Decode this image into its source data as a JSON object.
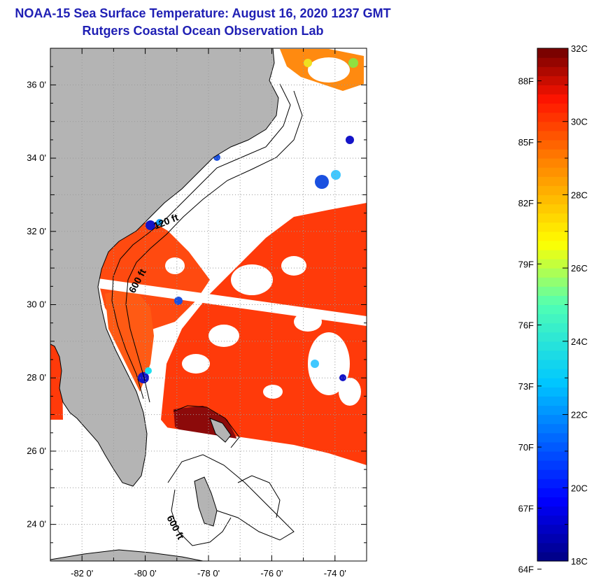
{
  "header": {
    "title": "NOAA-15 Sea Surface Temperature:  August 16, 2020 1237 GMT",
    "subtitle": "Rutgers Coastal Ocean Observation Lab"
  },
  "map": {
    "lon_range": [
      -83,
      -73
    ],
    "lat_range": [
      23,
      37
    ],
    "lat_ticks": [
      {
        "value": 36,
        "label": "36 0'"
      },
      {
        "value": 34,
        "label": "34 0'"
      },
      {
        "value": 32,
        "label": "32 0'"
      },
      {
        "value": 30,
        "label": "30 0'"
      },
      {
        "value": 28,
        "label": "28 0'"
      },
      {
        "value": 26,
        "label": "26 0'"
      },
      {
        "value": 24,
        "label": "24 0'"
      }
    ],
    "lon_ticks": [
      {
        "value": -82,
        "label": "-82 0'"
      },
      {
        "value": -80,
        "label": "-80 0'"
      },
      {
        "value": -78,
        "label": "-78 0'"
      },
      {
        "value": -76,
        "label": "-76 0'"
      },
      {
        "value": -74,
        "label": "-74 0'"
      }
    ],
    "contour_labels": [
      "120 ft",
      "600 ft",
      "600 ft"
    ],
    "colors": {
      "land": "#b4b4b4",
      "cloud": "#ffffff",
      "sst_dominant": "#ff3a0a"
    }
  },
  "colorbar": {
    "min_c": 18,
    "max_c": 32,
    "celsius_labels": [
      {
        "value": 32,
        "label": "32C"
      },
      {
        "value": 30,
        "label": "30C"
      },
      {
        "value": 28,
        "label": "28C"
      },
      {
        "value": 26,
        "label": "26C"
      },
      {
        "value": 24,
        "label": "24C"
      },
      {
        "value": 22,
        "label": "22C"
      },
      {
        "value": 20,
        "label": "20C"
      },
      {
        "value": 18,
        "label": "18C"
      }
    ],
    "fahrenheit_labels": [
      {
        "value": 88,
        "label": "88F"
      },
      {
        "value": 85,
        "label": "85F"
      },
      {
        "value": 82,
        "label": "82F"
      },
      {
        "value": 79,
        "label": "79F"
      },
      {
        "value": 76,
        "label": "76F"
      },
      {
        "value": 73,
        "label": "73F"
      },
      {
        "value": 70,
        "label": "70F"
      },
      {
        "value": 67,
        "label": "67F"
      },
      {
        "value": 64,
        "label": "64F"
      }
    ]
  }
}
